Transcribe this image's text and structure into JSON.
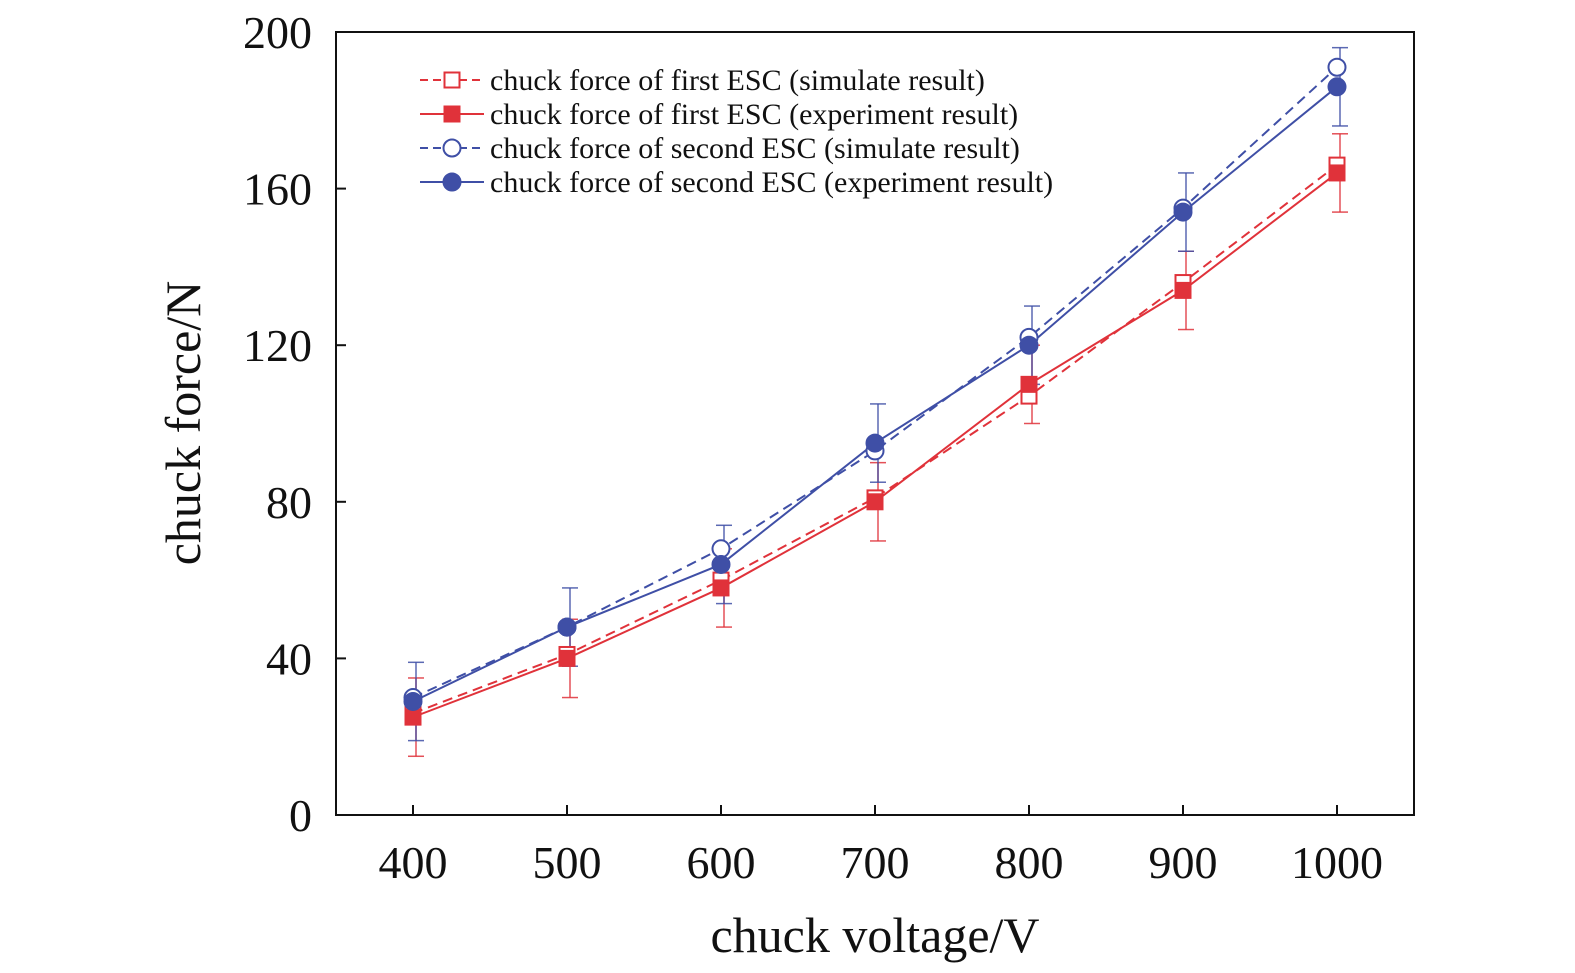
{
  "chart_data": {
    "type": "line",
    "title": "",
    "xlabel": "chuck voltage/V",
    "ylabel": "chuck force/N",
    "x": [
      400,
      500,
      600,
      700,
      800,
      900,
      1000
    ],
    "xlim": [
      350,
      1050
    ],
    "ylim": [
      0,
      200
    ],
    "yticks": [
      0,
      40,
      80,
      120,
      160,
      200
    ],
    "grid": false,
    "legend_position": "top-left",
    "series": [
      {
        "name": "chuck force of first ESC (simulate result)",
        "color": "#e0323a",
        "line_style": "dashed",
        "marker": "open-square",
        "values": [
          26,
          41,
          60,
          81,
          107,
          136,
          166
        ],
        "error": [
          0,
          0,
          0,
          0,
          0,
          0,
          0
        ]
      },
      {
        "name": "chuck force of first ESC (experiment result)",
        "color": "#e0323a",
        "line_style": "solid",
        "marker": "filled-square",
        "values": [
          25,
          40,
          58,
          80,
          110,
          134,
          164
        ],
        "error": [
          10,
          10,
          10,
          10,
          10,
          10,
          10
        ]
      },
      {
        "name": "chuck force of second ESC (simulate result)",
        "color": "#3f4fa6",
        "line_style": "dashed",
        "marker": "open-circle",
        "values": [
          30,
          48,
          68,
          93,
          122,
          155,
          191
        ],
        "error": [
          0,
          0,
          0,
          0,
          0,
          0,
          0
        ]
      },
      {
        "name": "chuck force of second ESC (experiment result)",
        "color": "#3f4fa6",
        "line_style": "solid",
        "marker": "filled-circle",
        "values": [
          29,
          48,
          64,
          95,
          120,
          154,
          186
        ],
        "error": [
          10,
          10,
          10,
          10,
          10,
          10,
          10
        ]
      }
    ]
  }
}
